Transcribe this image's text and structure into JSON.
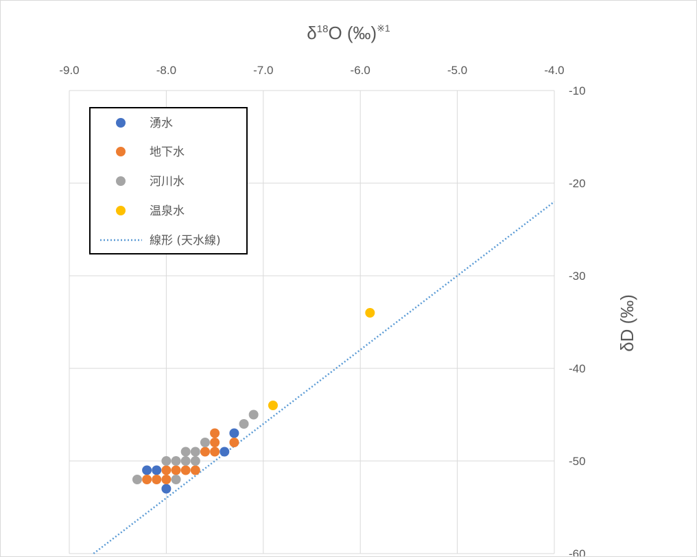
{
  "chart_data": {
    "type": "scatter",
    "x_title": {
      "prefix": "δ",
      "sup": "18",
      "main": "O (‰)",
      "note": "※1"
    },
    "y_title": "δD (‰)",
    "xlim": [
      -9.0,
      -4.0
    ],
    "ylim": [
      -60,
      -10
    ],
    "x_ticks": [
      "-9.0",
      "-8.0",
      "-7.0",
      "-6.0",
      "-5.0",
      "-4.0"
    ],
    "y_ticks": [
      "-10",
      "-20",
      "-30",
      "-40",
      "-50",
      "-60"
    ],
    "x_axis_position": "top",
    "y_axis_position": "right",
    "grid": true,
    "legend_position": "top-left",
    "series": [
      {
        "name": "湧水",
        "color": "#4472C4",
        "points": [
          [
            -8.2,
            -51
          ],
          [
            -8.1,
            -51
          ],
          [
            -8.0,
            -53
          ],
          [
            -7.4,
            -49
          ],
          [
            -7.3,
            -47
          ]
        ]
      },
      {
        "name": "地下水",
        "color": "#ED7D31",
        "points": [
          [
            -8.2,
            -52
          ],
          [
            -8.1,
            -52
          ],
          [
            -8.0,
            -52
          ],
          [
            -8.0,
            -51
          ],
          [
            -7.9,
            -51
          ],
          [
            -7.8,
            -51
          ],
          [
            -7.7,
            -51
          ],
          [
            -7.6,
            -49
          ],
          [
            -7.5,
            -49
          ],
          [
            -7.5,
            -48
          ],
          [
            -7.5,
            -47
          ],
          [
            -7.3,
            -48
          ]
        ]
      },
      {
        "name": "河川水",
        "color": "#A5A5A5",
        "points": [
          [
            -8.3,
            -52
          ],
          [
            -8.0,
            -50
          ],
          [
            -7.9,
            -50
          ],
          [
            -7.9,
            -52
          ],
          [
            -7.8,
            -50
          ],
          [
            -7.8,
            -49
          ],
          [
            -7.7,
            -49
          ],
          [
            -7.7,
            -50
          ],
          [
            -7.6,
            -48
          ],
          [
            -7.2,
            -46
          ],
          [
            -7.1,
            -45
          ]
        ]
      },
      {
        "name": "温泉水",
        "color": "#FFC000",
        "points": [
          [
            -6.9,
            -44
          ],
          [
            -5.9,
            -34
          ]
        ]
      }
    ],
    "trendline": {
      "name": "線形 (天水線)",
      "color": "#5B9BD5",
      "slope": 8,
      "intercept": 10,
      "style": "dotted"
    }
  }
}
